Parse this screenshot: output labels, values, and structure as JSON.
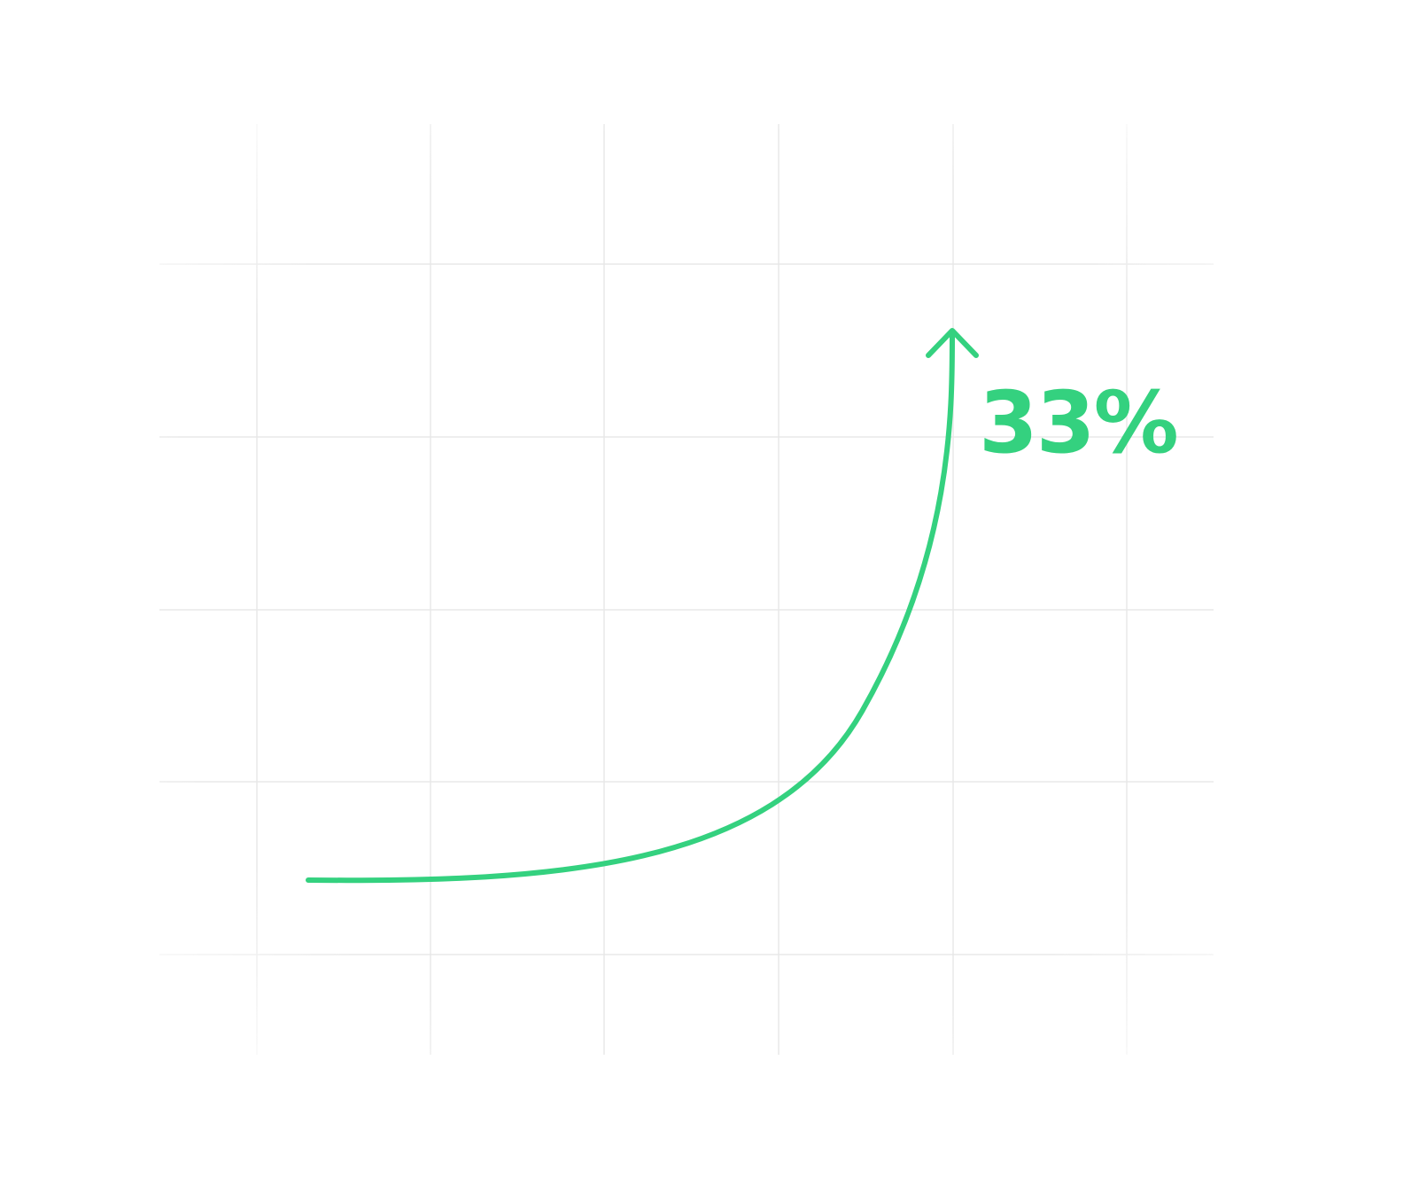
{
  "colors": {
    "accent": "#34d17f",
    "grid": "#e8e8e8",
    "background": "#ffffff"
  },
  "chart_data": {
    "type": "line",
    "title": "",
    "xlabel": "",
    "ylabel": "",
    "grid": true,
    "annotation": "33%",
    "series": [
      {
        "x": [
          0,
          0.2,
          0.4,
          0.6,
          0.8,
          1.0
        ],
        "y": [
          0.0,
          0.01,
          0.05,
          0.15,
          0.45,
          1.0
        ]
      }
    ],
    "arrow_at_end": true
  }
}
